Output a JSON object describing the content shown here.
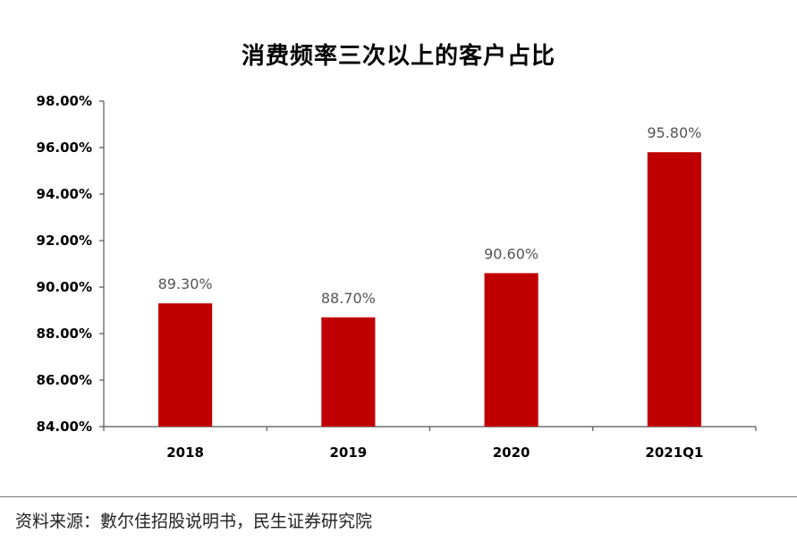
{
  "chart_data": {
    "type": "bar",
    "title": "消费频率三次以上的客户占比",
    "categories": [
      "2018",
      "2019",
      "2020",
      "2021Q1"
    ],
    "values": [
      89.3,
      88.7,
      90.6,
      95.8
    ],
    "data_labels": [
      "89.30%",
      "88.70%",
      "90.60%",
      "95.80%"
    ],
    "xlabel": "",
    "ylabel": "",
    "ylim": [
      84,
      98
    ],
    "yticks": [
      "84.00%",
      "86.00%",
      "88.00%",
      "90.00%",
      "92.00%",
      "94.00%",
      "96.00%",
      "98.00%"
    ],
    "grid": false,
    "legend": "none",
    "bar_color": "#C00000"
  },
  "footer": {
    "source": "资料来源：數尔佳招股说明书，民生证券研究院"
  }
}
